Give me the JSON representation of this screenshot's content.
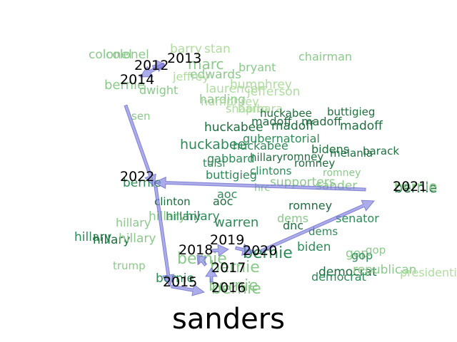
{
  "title": "sanders",
  "arrow_color": "#8080e0",
  "years": [
    {
      "label": "2012"
    },
    {
      "label": "2013"
    },
    {
      "label": "2014"
    },
    {
      "label": "2015"
    },
    {
      "label": "2016"
    },
    {
      "label": "2017"
    },
    {
      "label": "2018"
    },
    {
      "label": "2019"
    },
    {
      "label": "2020"
    },
    {
      "label": "2021"
    },
    {
      "label": "2022"
    }
  ],
  "words": [
    {
      "t": "colonel",
      "c": "#8bc98b"
    },
    {
      "t": "colonel",
      "c": "#8bc98b"
    },
    {
      "t": "barry",
      "c": "#b0dca0"
    },
    {
      "t": "stan",
      "c": "#b0dca0"
    },
    {
      "t": "marc",
      "c": "#8bc98b"
    },
    {
      "t": "chairman",
      "c": "#8bc98b"
    },
    {
      "t": "bryant",
      "c": "#8bc98b"
    },
    {
      "t": "edwards",
      "c": "#8bc98b"
    },
    {
      "t": "jeffrey",
      "c": "#b0dca0"
    },
    {
      "t": "bernie",
      "c": "#8bc98b"
    },
    {
      "t": "dwight",
      "c": "#8bc98b"
    },
    {
      "t": "humphrey",
      "c": "#b0dca0"
    },
    {
      "t": "laurence",
      "c": "#b0dca0"
    },
    {
      "t": "jefferson",
      "c": "#b0dca0"
    },
    {
      "t": "harding",
      "c": "#8bc98b"
    },
    {
      "t": "humphrey",
      "c": "#b0dca0"
    },
    {
      "t": "shapiro",
      "c": "#b0dca0"
    },
    {
      "t": "barbara",
      "c": "#b0dca0"
    },
    {
      "t": "sen",
      "c": "#8bc98b"
    },
    {
      "t": "huckabee",
      "c": "#1e6e3e"
    },
    {
      "t": "buttigieg",
      "c": "#1e6e3e"
    },
    {
      "t": "madoff",
      "c": "#1e6e3e"
    },
    {
      "t": "madoff",
      "c": "#1e6e3e"
    },
    {
      "t": "huckabee",
      "c": "#1e6e3e"
    },
    {
      "t": "madoff",
      "c": "#1e6e3e"
    },
    {
      "t": "madoff",
      "c": "#1e6e3e"
    },
    {
      "t": "gubernatorial",
      "c": "#2e8b57"
    },
    {
      "t": "huckabee",
      "c": "#2e8b57"
    },
    {
      "t": "huckabee",
      "c": "#2e8b57"
    },
    {
      "t": "bidens",
      "c": "#1e6e3e"
    },
    {
      "t": "melania",
      "c": "#1e6e3e"
    },
    {
      "t": "barack",
      "c": "#1e6e3e"
    },
    {
      "t": "hillary",
      "c": "#1e6e3e"
    },
    {
      "t": "romney",
      "c": "#1e6e3e"
    },
    {
      "t": "gabbard",
      "c": "#2e8b57"
    },
    {
      "t": "tulsi",
      "c": "#2e8b57"
    },
    {
      "t": "romney",
      "c": "#1e6e3e"
    },
    {
      "t": "clintons",
      "c": "#2e8b57"
    },
    {
      "t": "buttigieg",
      "c": "#2e8b57"
    },
    {
      "t": "romney",
      "c": "#8bc98b"
    },
    {
      "t": "supporters",
      "c": "#8bc98b"
    },
    {
      "t": "sander",
      "c": "#8bc98b"
    },
    {
      "t": "hrc",
      "c": "#8bc98b"
    },
    {
      "t": "bernie",
      "c": "#1e6e3e"
    },
    {
      "t": "bernie",
      "c": "#2e8b57"
    },
    {
      "t": "aoc",
      "c": "#2e8b57"
    },
    {
      "t": "aoc",
      "c": "#1e6e3e"
    },
    {
      "t": "clinton",
      "c": "#1e6e3e"
    },
    {
      "t": "romney",
      "c": "#1e6e3e"
    },
    {
      "t": "senator",
      "c": "#2e8b57"
    },
    {
      "t": "hillary",
      "c": "#8bc98b"
    },
    {
      "t": "hillary",
      "c": "#8bc98b"
    },
    {
      "t": "hilary",
      "c": "#2e8b57"
    },
    {
      "t": "hillary",
      "c": "#2e8b57"
    },
    {
      "t": "warren",
      "c": "#2e8b57"
    },
    {
      "t": "dems",
      "c": "#8bc98b"
    },
    {
      "t": "dnc",
      "c": "#1e6e3e"
    },
    {
      "t": "dems",
      "c": "#2e8b57"
    },
    {
      "t": "hillary",
      "c": "#2e8b57"
    },
    {
      "t": "hillary",
      "c": "#1e6e3e"
    },
    {
      "t": "hillary",
      "c": "#8bc98b"
    },
    {
      "t": "biden",
      "c": "#2e8b57"
    },
    {
      "t": "bernie",
      "c": "#8bc98b"
    },
    {
      "t": "bernie",
      "c": "#8bc98b"
    },
    {
      "t": "bernie",
      "c": "#2e8b57"
    },
    {
      "t": "gop",
      "c": "#8bc98b"
    },
    {
      "t": "gop",
      "c": "#2e8b57"
    },
    {
      "t": "gop",
      "c": "#8bc98b"
    },
    {
      "t": "trump",
      "c": "#8bc98b"
    },
    {
      "t": "bernie",
      "c": "#2e8b57"
    },
    {
      "t": "bernie",
      "c": "#8bc98b"
    },
    {
      "t": "bernie",
      "c": "#8bc98b"
    },
    {
      "t": "democrat",
      "c": "#1e6e3e"
    },
    {
      "t": "republican",
      "c": "#8bc98b"
    },
    {
      "t": "democrat",
      "c": "#2e8b57"
    },
    {
      "t": "presidential",
      "c": "#b0dca0"
    },
    {
      "t": "bernie",
      "c": "#8bc98b"
    }
  ]
}
